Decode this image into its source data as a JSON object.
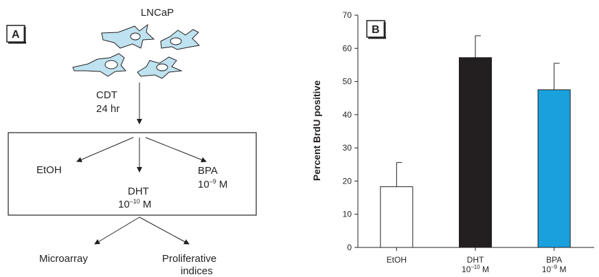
{
  "panel_a": {
    "letter": "A",
    "cell_line": "LNCaP",
    "treatment_line1": "CDT",
    "treatment_line2": "24 hr",
    "branch_etoh": "EtOH",
    "branch_dht": "DHT",
    "branch_dht_conc_base": "10",
    "branch_dht_conc_exp": "–10",
    "branch_dht_conc_unit": " M",
    "branch_bpa": "BPA",
    "branch_bpa_conc_base": "10",
    "branch_bpa_conc_exp": "–9",
    "branch_bpa_conc_unit": " M",
    "output_microarray": "Microarray",
    "output_prolif_line1": "Proliferative",
    "output_prolif_line2": "indices"
  },
  "chart_data": {
    "type": "bar",
    "panel_letter": "B",
    "categories": [
      "EtOH",
      "DHT",
      "BPA"
    ],
    "category_sublabels": [
      null,
      {
        "base": "10",
        "exp": "–10",
        "unit": " M"
      },
      {
        "base": "10",
        "exp": "–9",
        "unit": " M"
      }
    ],
    "values": [
      18.3,
      57.2,
      47.5
    ],
    "errors": [
      7.3,
      6.6,
      8.0
    ],
    "bar_colors": [
      "#ffffff",
      "#231f20",
      "#1aa0dc"
    ],
    "ylabel": "Percent BrdU positive",
    "ylim": [
      0,
      70
    ],
    "yticks": [
      0,
      10,
      20,
      30,
      40,
      50,
      60,
      70
    ]
  }
}
